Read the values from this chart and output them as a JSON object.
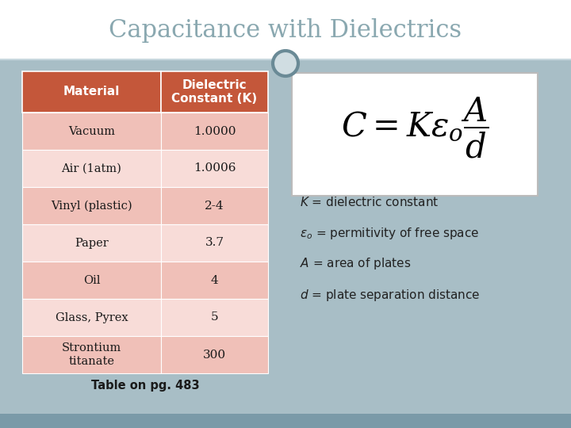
{
  "title": "Capacitance with Dielectrics",
  "title_color": "#8aa8b0",
  "title_fontsize": 22,
  "bg_color": "#a8bec6",
  "top_bar_color": "#ffffff",
  "table_header_color": "#c4573a",
  "table_header_text_color": "#ffffff",
  "table_row_colors_even": "#f0c0b8",
  "table_row_colors_odd": "#f8dcd8",
  "table_border_color": "#c4573a",
  "materials": [
    "Vacuum",
    "Air (1atm)",
    "Vinyl (plastic)",
    "Paper",
    "Oil",
    "Glass, Pyrex",
    "Strontium\ntitanate"
  ],
  "constants": [
    "1.0000",
    "1.0006",
    "2-4",
    "3.7",
    "4",
    "5",
    "300"
  ],
  "col_headers": [
    "Material",
    "Dielectric\nConstant (K)"
  ],
  "footer_text": "Table on pg. 483",
  "formula_box_color": "#ffffff",
  "annotation_color": "#222222",
  "circle_edge_color": "#6a8a96",
  "circle_face_color": "#d0dde2",
  "bottom_bar_color": "#7a9aa8"
}
